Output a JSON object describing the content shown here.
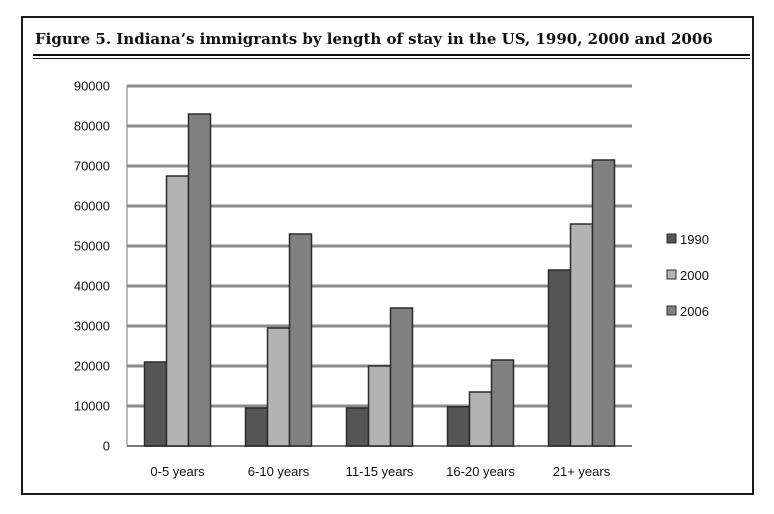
{
  "chart_data": {
    "type": "bar",
    "title": "Figure 5. Indiana’s immigrants by length of stay in the US, 1990, 2000 and 2006",
    "xlabel": "",
    "ylabel": "",
    "categories": [
      "0-5 years",
      "6-10 years",
      "11-15 years",
      "16-20 years",
      "21+ years"
    ],
    "series": [
      {
        "name": "1990",
        "color": "#555555",
        "values": [
          21000,
          9500,
          9500,
          9800,
          44000
        ]
      },
      {
        "name": "2000",
        "color": "#b3b3b3",
        "values": [
          67500,
          29500,
          20000,
          13500,
          55500
        ]
      },
      {
        "name": "2006",
        "color": "#808080",
        "values": [
          83000,
          53000,
          34500,
          21500,
          71500
        ]
      }
    ],
    "ylim": [
      0,
      90000
    ],
    "yticks": [
      0,
      10000,
      20000,
      30000,
      40000,
      50000,
      60000,
      70000,
      80000,
      90000
    ],
    "grid": true,
    "legend_position": "right"
  }
}
